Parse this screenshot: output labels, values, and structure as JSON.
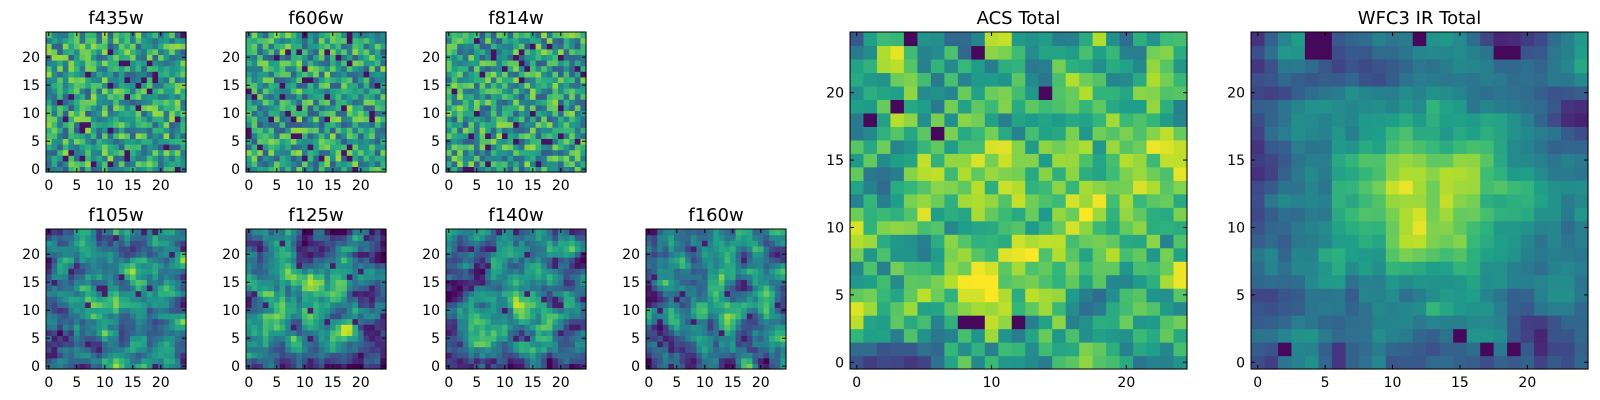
{
  "chart_data": [
    {
      "type": "heatmap",
      "title": "f435w",
      "grid_size": 25,
      "colormap": "viridis",
      "xticks": [
        "0",
        "5",
        "10",
        "15",
        "20"
      ],
      "yticks": [
        "0",
        "5",
        "10",
        "15",
        "20"
      ],
      "xlim": [
        -0.5,
        24.5
      ],
      "ylim": [
        -0.5,
        24.5
      ],
      "texture": "noise",
      "seed": 11
    },
    {
      "type": "heatmap",
      "title": "f606w",
      "grid_size": 25,
      "colormap": "viridis",
      "xticks": [
        "0",
        "5",
        "10",
        "15",
        "20"
      ],
      "yticks": [
        "0",
        "5",
        "10",
        "15",
        "20"
      ],
      "xlim": [
        -0.5,
        24.5
      ],
      "ylim": [
        -0.5,
        24.5
      ],
      "texture": "noise",
      "seed": 23
    },
    {
      "type": "heatmap",
      "title": "f814w",
      "grid_size": 25,
      "colormap": "viridis",
      "xticks": [
        "0",
        "5",
        "10",
        "15",
        "20"
      ],
      "yticks": [
        "0",
        "5",
        "10",
        "15",
        "20"
      ],
      "xlim": [
        -0.5,
        24.5
      ],
      "ylim": [
        -0.5,
        24.5
      ],
      "texture": "noise",
      "seed": 37
    },
    {
      "type": "heatmap",
      "title": "f105w",
      "grid_size": 25,
      "colormap": "viridis",
      "xticks": [
        "0",
        "5",
        "10",
        "15",
        "20"
      ],
      "yticks": [
        "0",
        "5",
        "10",
        "15",
        "20"
      ],
      "xlim": [
        -0.5,
        24.5
      ],
      "ylim": [
        -0.5,
        24.5
      ],
      "texture": "smooth",
      "seed": 41
    },
    {
      "type": "heatmap",
      "title": "f125w",
      "grid_size": 25,
      "colormap": "viridis",
      "xticks": [
        "0",
        "5",
        "10",
        "15",
        "20"
      ],
      "yticks": [
        "0",
        "5",
        "10",
        "15",
        "20"
      ],
      "xlim": [
        -0.5,
        24.5
      ],
      "ylim": [
        -0.5,
        24.5
      ],
      "texture": "smooth",
      "seed": 53
    },
    {
      "type": "heatmap",
      "title": "f140w",
      "grid_size": 25,
      "colormap": "viridis",
      "xticks": [
        "0",
        "5",
        "10",
        "15",
        "20"
      ],
      "yticks": [
        "0",
        "5",
        "10",
        "15",
        "20"
      ],
      "xlim": [
        -0.5,
        24.5
      ],
      "ylim": [
        -0.5,
        24.5
      ],
      "texture": "smooth",
      "seed": 67
    },
    {
      "type": "heatmap",
      "title": "f160w",
      "grid_size": 25,
      "colormap": "viridis",
      "xticks": [
        "0",
        "5",
        "10",
        "15",
        "20"
      ],
      "yticks": [
        "0",
        "5",
        "10",
        "15",
        "20"
      ],
      "xlim": [
        -0.5,
        24.5
      ],
      "ylim": [
        -0.5,
        24.5
      ],
      "texture": "smooth",
      "seed": 79
    },
    {
      "type": "heatmap",
      "title": "ACS Total",
      "grid_size": 25,
      "colormap": "viridis",
      "xticks": [
        "0",
        "10",
        "20"
      ],
      "yticks": [
        "0",
        "5",
        "10",
        "15",
        "20"
      ],
      "xlim": [
        -0.5,
        24.5
      ],
      "ylim": [
        -0.5,
        24.5
      ],
      "texture": "total_acs",
      "seed": 97,
      "dark_cells": [
        [
          8,
          3
        ],
        [
          9,
          3
        ],
        [
          12,
          3
        ],
        [
          3,
          19
        ],
        [
          6,
          17
        ],
        [
          1,
          18
        ],
        [
          14,
          20
        ],
        [
          4,
          24
        ],
        [
          9,
          23
        ]
      ]
    },
    {
      "type": "heatmap",
      "title": "WFC3 IR Total",
      "grid_size": 25,
      "colormap": "viridis",
      "xticks": [
        "0",
        "5",
        "10",
        "15",
        "20"
      ],
      "yticks": [
        "0",
        "5",
        "10",
        "15",
        "20"
      ],
      "xlim": [
        -0.5,
        24.5
      ],
      "ylim": [
        -0.5,
        24.5
      ],
      "texture": "total_ir",
      "seed": 113,
      "dark_cells": [
        [
          4,
          24
        ],
        [
          5,
          24
        ],
        [
          4,
          23
        ],
        [
          5,
          23
        ],
        [
          18,
          23
        ],
        [
          19,
          23
        ],
        [
          12,
          24
        ],
        [
          2,
          1
        ],
        [
          17,
          1
        ],
        [
          19,
          1
        ],
        [
          15,
          2
        ]
      ]
    }
  ]
}
